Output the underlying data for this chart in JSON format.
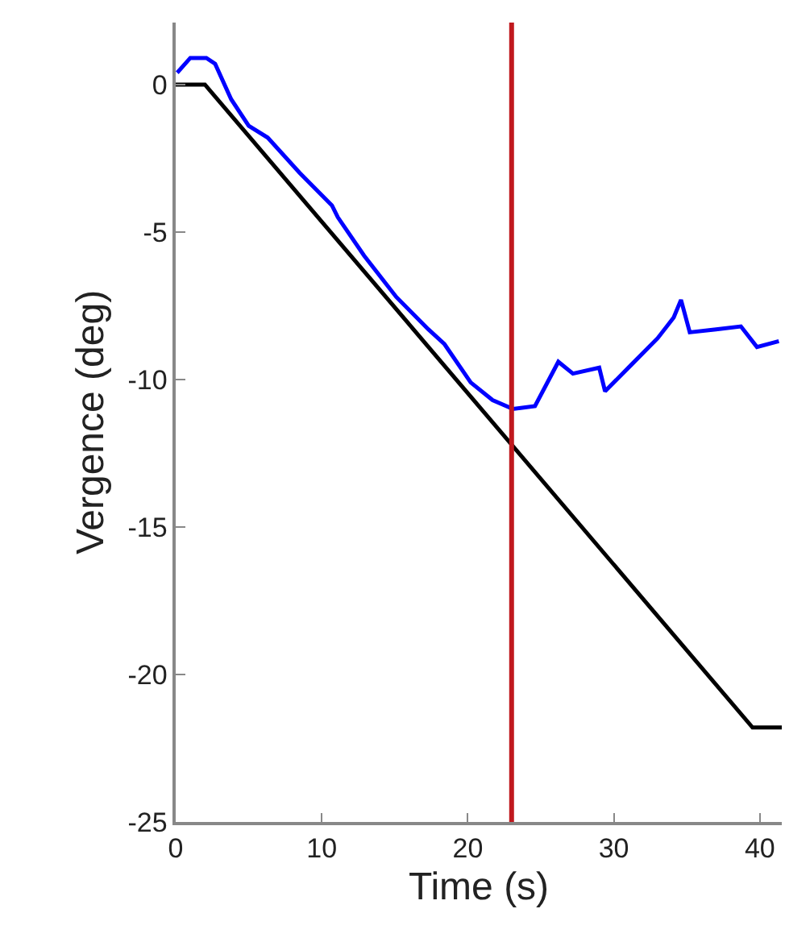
{
  "chart_data": {
    "type": "line",
    "xlabel": "Time (s)",
    "ylabel": "Vergence (deg)",
    "xlim": [
      0,
      41.5
    ],
    "xticks": [
      0,
      10,
      20,
      30,
      40
    ],
    "ylim": [
      -25,
      2.1
    ],
    "yticks": [
      -25,
      -20,
      -15,
      -10,
      -5,
      0
    ],
    "marker": "none",
    "line_style": "solid",
    "series": [
      {
        "color": "#0000ff",
        "x": [
          0.1,
          1.0,
          2.1,
          2.7,
          3.8,
          5.0,
          6.3,
          8.5,
          10.7,
          11.1,
          12.9,
          15.1,
          17.3,
          18.4,
          20.2,
          21.7,
          23.1,
          24.6,
          26.2,
          27.2,
          29.0,
          29.4,
          31.2,
          33.0,
          34.1,
          34.6,
          35.2,
          37.0,
          38.7,
          39.8,
          41.3
        ],
        "values": [
          0.4,
          0.9,
          0.9,
          0.7,
          -0.5,
          -1.4,
          -1.8,
          -3.0,
          -4.1,
          -4.5,
          -5.8,
          -7.2,
          -8.3,
          -8.8,
          -10.1,
          -10.7,
          -11.0,
          -10.9,
          -9.4,
          -9.8,
          -9.6,
          -10.4,
          -9.5,
          -8.6,
          -7.9,
          -7.3,
          -8.4,
          -8.3,
          -8.2,
          -8.9,
          -8.7
        ]
      },
      {
        "color": "#000000",
        "x": [
          0,
          2,
          39.5,
          41.5
        ],
        "values": [
          0,
          0,
          -21.8,
          -21.8
        ]
      }
    ],
    "ref_lines": [
      {
        "axis": "x",
        "value": 23,
        "color": "#c0191e",
        "line_style": "solid"
      }
    ]
  }
}
